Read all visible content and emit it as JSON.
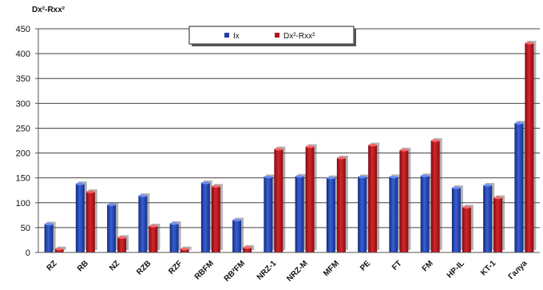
{
  "chart_data": {
    "type": "bar",
    "title": "",
    "xlabel": "",
    "ylabel": "Dx²-Rxx²",
    "ylim": [
      0,
      450
    ],
    "yticks": [
      0,
      50,
      100,
      150,
      200,
      250,
      300,
      350,
      400,
      450
    ],
    "grid": true,
    "legend_position": "top-center",
    "categories": [
      "RZ",
      "RB",
      "NZ",
      "RZB",
      "RZF",
      "RBFM",
      "RB²FM",
      "NRZ-1",
      "NRZ-M",
      "MFM",
      "PE",
      "FT",
      "FM",
      "HP-IL",
      "KT-1",
      "Галуа"
    ],
    "series": [
      {
        "name": "Ix",
        "color": "#1f3fa6",
        "values": [
          57,
          138,
          96,
          114,
          58,
          140,
          65,
          152,
          153,
          150,
          152,
          152,
          154,
          130,
          135,
          260
        ]
      },
      {
        "name": "Dx²-Rxx²",
        "color": "#b01318",
        "values": [
          7,
          122,
          30,
          53,
          7,
          133,
          10,
          208,
          213,
          190,
          216,
          206,
          225,
          91,
          110,
          421
        ]
      }
    ]
  }
}
